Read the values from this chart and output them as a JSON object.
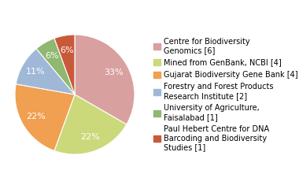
{
  "labels": [
    "Centre for Biodiversity\nGenomics [6]",
    "Mined from GenBank, NCBI [4]",
    "Gujarat Biodiversity Gene Bank [4]",
    "Forestry and Forest Products\nResearch Institute [2]",
    "University of Agriculture,\nFaisalabad [1]",
    "Paul Hebert Centre for DNA\nBarcoding and Biodiversity\nStudies [1]"
  ],
  "values": [
    6,
    4,
    4,
    2,
    1,
    1
  ],
  "colors": [
    "#d9a0a0",
    "#ccd97a",
    "#f0a050",
    "#a0b8d8",
    "#90b870",
    "#c85a3a"
  ],
  "startangle": 90,
  "pctdistance": 0.75,
  "legend_fontsize": 7.0,
  "autopct_fontsize": 8,
  "figwidth": 3.8,
  "figheight": 2.4,
  "dpi": 100
}
